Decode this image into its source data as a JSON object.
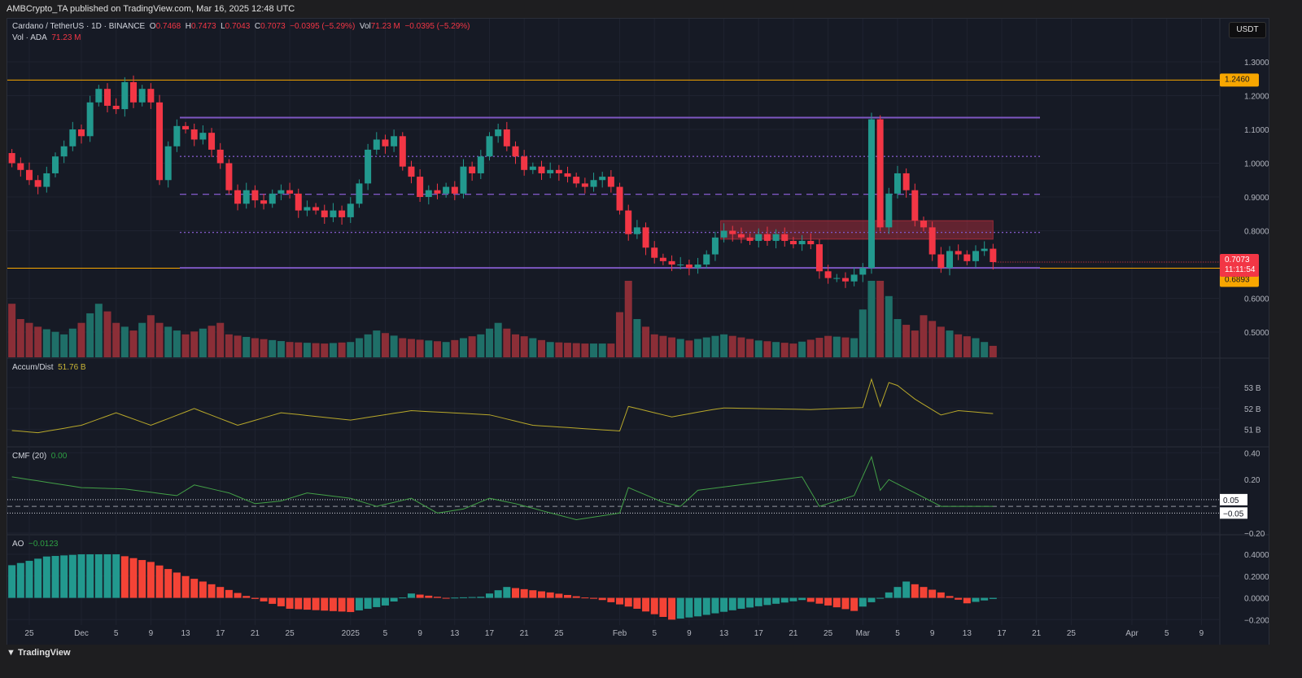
{
  "header": {
    "published": "AMBCrypto_TA published on TradingView.com, Mar 16, 2025 12:48 UTC"
  },
  "legend": {
    "symbol": "Cardano / TetherUS · 1D · BINANCE",
    "o_label": "O",
    "o": "0.7468",
    "h_label": "H",
    "h": "0.7473",
    "l_label": "L",
    "l": "0.7043",
    "c_label": "C",
    "c": "0.7073",
    "change": "−0.0395 (−5.29%)",
    "vol_label": "Vol",
    "vol": "71.23 M",
    "vol_change": "−0.0395 (−5.29%)",
    "vol_line_label": "Vol · ADA",
    "vol_line_value": "71.23 M"
  },
  "currency_button": "USDT",
  "brand": "TradingView",
  "colors": {
    "up": "#22998e",
    "down": "#f23645",
    "orange": "#f7a600",
    "purple": "#7e57c2",
    "ad": "#b8a82a",
    "cmf": "#43a047"
  },
  "chart_data": [
    {
      "type": "candlestick",
      "title": "Cardano / TetherUS · 1D · BINANCE",
      "start_date": "2024-11-23",
      "ylim": [
        0.44,
        1.35
      ],
      "y_ticks": [
        "1.3000",
        "1.2000",
        "1.1000",
        "1.0000",
        "0.9000",
        "0.8000",
        "0.6000",
        "0.5000"
      ],
      "y_tick_values": [
        1.3,
        1.2,
        1.1,
        1.0,
        0.9,
        0.8,
        0.6,
        0.5
      ],
      "x_ticks": [
        {
          "day": 2,
          "label": "25"
        },
        {
          "day": 8,
          "label": "Dec"
        },
        {
          "day": 12,
          "label": "5"
        },
        {
          "day": 16,
          "label": "9"
        },
        {
          "day": 20,
          "label": "13"
        },
        {
          "day": 24,
          "label": "17"
        },
        {
          "day": 28,
          "label": "21"
        },
        {
          "day": 32,
          "label": "25"
        },
        {
          "day": 39,
          "label": "2025"
        },
        {
          "day": 43,
          "label": "5"
        },
        {
          "day": 47,
          "label": "9"
        },
        {
          "day": 51,
          "label": "13"
        },
        {
          "day": 55,
          "label": "17"
        },
        {
          "day": 59,
          "label": "21"
        },
        {
          "day": 63,
          "label": "25"
        },
        {
          "day": 70,
          "label": "Feb"
        },
        {
          "day": 74,
          "label": "5"
        },
        {
          "day": 78,
          "label": "9"
        },
        {
          "day": 82,
          "label": "13"
        },
        {
          "day": 86,
          "label": "17"
        },
        {
          "day": 90,
          "label": "21"
        },
        {
          "day": 94,
          "label": "25"
        },
        {
          "day": 98,
          "label": "Mar"
        },
        {
          "day": 102,
          "label": "5"
        },
        {
          "day": 106,
          "label": "9"
        },
        {
          "day": 110,
          "label": "13"
        },
        {
          "day": 114,
          "label": "17"
        },
        {
          "day": 118,
          "label": "21"
        },
        {
          "day": 122,
          "label": "25"
        },
        {
          "day": 129,
          "label": "Apr"
        },
        {
          "day": 133,
          "label": "5"
        },
        {
          "day": 137,
          "label": "9"
        }
      ],
      "first_open": 1.03,
      "closes": [
        1.0,
        0.98,
        0.95,
        0.93,
        0.97,
        1.02,
        1.05,
        1.1,
        1.08,
        1.18,
        1.22,
        1.17,
        1.16,
        1.24,
        1.18,
        1.22,
        1.18,
        0.95,
        1.05,
        1.11,
        1.1,
        1.07,
        1.09,
        1.04,
        1.0,
        0.92,
        0.88,
        0.92,
        0.89,
        0.88,
        0.91,
        0.92,
        0.91,
        0.86,
        0.87,
        0.86,
        0.84,
        0.86,
        0.84,
        0.88,
        0.94,
        1.04,
        1.07,
        1.05,
        1.08,
        0.99,
        0.96,
        0.9,
        0.92,
        0.91,
        0.93,
        0.91,
        0.99,
        0.97,
        1.02,
        1.08,
        1.1,
        1.05,
        1.02,
        0.98,
        0.99,
        0.97,
        0.98,
        0.97,
        0.96,
        0.94,
        0.93,
        0.95,
        0.96,
        0.93,
        0.86,
        0.79,
        0.81,
        0.75,
        0.72,
        0.71,
        0.7,
        0.7,
        0.69,
        0.7,
        0.73,
        0.78,
        0.8,
        0.79,
        0.78,
        0.77,
        0.79,
        0.77,
        0.79,
        0.77,
        0.76,
        0.77,
        0.76,
        0.68,
        0.66,
        0.66,
        0.65,
        0.67,
        0.69,
        1.13,
        0.81,
        0.91,
        0.97,
        0.92,
        0.83,
        0.81,
        0.73,
        0.69,
        0.74,
        0.73,
        0.71,
        0.74,
        0.7468,
        0.7073
      ],
      "last_price": {
        "value": 0.7073,
        "label": "0.7073",
        "countdown": "11:11:54"
      },
      "levels": [
        {
          "name": "resistance-high",
          "value": 1.246,
          "label": "1.2460",
          "style": "orange"
        },
        {
          "name": "support",
          "value": 0.6893,
          "label": "0.6893",
          "style": "orange"
        },
        {
          "name": "range-high",
          "value": 1.135,
          "style": "purple-solid"
        },
        {
          "name": "range-upper-quarter",
          "value": 1.02,
          "style": "purple-dotted"
        },
        {
          "name": "range-mid",
          "value": 0.908,
          "style": "purple-dashed"
        },
        {
          "name": "range-lower-quarter",
          "value": 0.795,
          "style": "purple-dotted"
        },
        {
          "name": "range-low",
          "value": 0.69,
          "style": "purple-solid"
        }
      ],
      "zone": {
        "from_day": 82,
        "to_day": 113,
        "low": 0.775,
        "high": 0.83,
        "color": "#f23645"
      }
    },
    {
      "type": "bar",
      "title": "Vol · ADA",
      "unit": "relative",
      "keypoints": [
        [
          0,
          70
        ],
        [
          1,
          50
        ],
        [
          3,
          40
        ],
        [
          6,
          30
        ],
        [
          8,
          45
        ],
        [
          10,
          70
        ],
        [
          11,
          60
        ],
        [
          12,
          45
        ],
        [
          14,
          35
        ],
        [
          16,
          55
        ],
        [
          17,
          45
        ],
        [
          20,
          30
        ],
        [
          24,
          45
        ],
        [
          25,
          30
        ],
        [
          28,
          25
        ],
        [
          32,
          20
        ],
        [
          36,
          18
        ],
        [
          39,
          20
        ],
        [
          42,
          35
        ],
        [
          45,
          25
        ],
        [
          50,
          20
        ],
        [
          54,
          30
        ],
        [
          56,
          45
        ],
        [
          58,
          30
        ],
        [
          62,
          20
        ],
        [
          66,
          18
        ],
        [
          69,
          18
        ],
        [
          71,
          100
        ],
        [
          72,
          50
        ],
        [
          74,
          30
        ],
        [
          78,
          22
        ],
        [
          82,
          30
        ],
        [
          86,
          22
        ],
        [
          90,
          18
        ],
        [
          94,
          28
        ],
        [
          97,
          25
        ],
        [
          99,
          100
        ],
        [
          100,
          100
        ],
        [
          101,
          80
        ],
        [
          102,
          50
        ],
        [
          104,
          35
        ],
        [
          105,
          55
        ],
        [
          107,
          40
        ],
        [
          109,
          30
        ],
        [
          111,
          25
        ],
        [
          113,
          15
        ]
      ]
    },
    {
      "type": "line",
      "title": "Accum/Dist",
      "value_label": "51.76 B",
      "y_ticks": [
        "53 B",
        "52 B",
        "51 B"
      ],
      "y_tick_values": [
        53,
        52,
        51
      ],
      "ylim": [
        50.6,
        53.9
      ],
      "keypoints": [
        [
          0,
          50.95
        ],
        [
          3,
          50.85
        ],
        [
          8,
          51.2
        ],
        [
          12,
          51.8
        ],
        [
          16,
          51.2
        ],
        [
          21,
          52.0
        ],
        [
          26,
          51.2
        ],
        [
          31,
          51.8
        ],
        [
          39,
          51.45
        ],
        [
          46,
          51.9
        ],
        [
          55,
          51.7
        ],
        [
          60,
          51.2
        ],
        [
          70,
          50.93
        ],
        [
          71,
          52.1
        ],
        [
          76,
          51.6
        ],
        [
          80,
          51.9
        ],
        [
          82,
          52.03
        ],
        [
          92,
          51.95
        ],
        [
          98,
          52.05
        ],
        [
          99,
          53.4
        ],
        [
          100,
          52.1
        ],
        [
          101,
          53.24
        ],
        [
          102,
          53.1
        ],
        [
          104,
          52.45
        ],
        [
          107,
          51.69
        ],
        [
          109,
          51.9
        ],
        [
          113,
          51.76
        ]
      ]
    },
    {
      "type": "line",
      "title": "CMF (20)",
      "value_label": "0.00",
      "y_ticks": [
        "0.40",
        "0.20",
        "−0.20"
      ],
      "y_tick_values": [
        0.4,
        0.2,
        -0.2
      ],
      "ylim": [
        -0.2,
        0.42
      ],
      "bands": [
        {
          "value": 0.05,
          "label": "0.05"
        },
        {
          "value": -0.05,
          "label": "−0.05"
        }
      ],
      "keypoints": [
        [
          0,
          0.22
        ],
        [
          8,
          0.14
        ],
        [
          13,
          0.13
        ],
        [
          19,
          0.08
        ],
        [
          21,
          0.16
        ],
        [
          25,
          0.1
        ],
        [
          28,
          0.02
        ],
        [
          31,
          0.04
        ],
        [
          34,
          0.1
        ],
        [
          39,
          0.06
        ],
        [
          42,
          0.0
        ],
        [
          46,
          0.06
        ],
        [
          49,
          -0.05
        ],
        [
          52,
          -0.02
        ],
        [
          55,
          0.06
        ],
        [
          58,
          0.02
        ],
        [
          65,
          -0.1
        ],
        [
          70,
          -0.05
        ],
        [
          71,
          0.14
        ],
        [
          75,
          0.03
        ],
        [
          77,
          0.0
        ],
        [
          79,
          0.12
        ],
        [
          85,
          0.17
        ],
        [
          91,
          0.22
        ],
        [
          93,
          0.0
        ],
        [
          97,
          0.08
        ],
        [
          99,
          0.37
        ],
        [
          100,
          0.12
        ],
        [
          101,
          0.2
        ],
        [
          104,
          0.1
        ],
        [
          107,
          0.0
        ],
        [
          113,
          0.0
        ]
      ]
    },
    {
      "type": "bar",
      "title": "AO",
      "value_label": "−0.0123",
      "y_ticks": [
        "0.4000",
        "0.2000",
        "0.0000",
        "−0.2000"
      ],
      "y_tick_values": [
        0.4,
        0.2,
        0,
        -0.2
      ],
      "ylim": [
        -0.25,
        0.46
      ],
      "keypoints": [
        [
          0,
          0.3
        ],
        [
          4,
          0.38
        ],
        [
          8,
          0.4
        ],
        [
          12,
          0.4
        ],
        [
          16,
          0.33
        ],
        [
          20,
          0.2
        ],
        [
          24,
          0.1
        ],
        [
          28,
          -0.01
        ],
        [
          32,
          -0.1
        ],
        [
          39,
          -0.13
        ],
        [
          43,
          -0.07
        ],
        [
          46,
          0.04
        ],
        [
          50,
          0.0
        ],
        [
          54,
          0.01
        ],
        [
          57,
          0.1
        ],
        [
          62,
          0.05
        ],
        [
          68,
          -0.02
        ],
        [
          72,
          -0.1
        ],
        [
          76,
          -0.2
        ],
        [
          79,
          -0.17
        ],
        [
          84,
          -0.1
        ],
        [
          91,
          -0.02
        ],
        [
          97,
          -0.12
        ],
        [
          98,
          -0.08
        ],
        [
          100,
          0.0
        ],
        [
          103,
          0.15
        ],
        [
          107,
          0.05
        ],
        [
          110,
          -0.05
        ],
        [
          113,
          -0.01
        ]
      ]
    }
  ]
}
